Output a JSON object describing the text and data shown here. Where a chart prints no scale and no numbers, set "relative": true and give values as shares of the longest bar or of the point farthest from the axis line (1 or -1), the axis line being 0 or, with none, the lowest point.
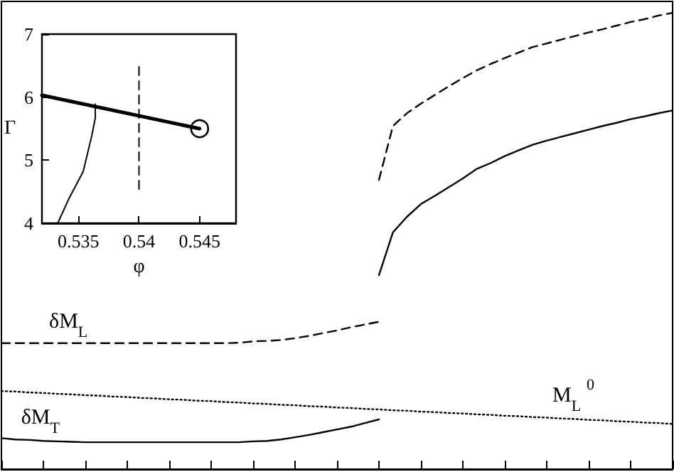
{
  "chart_data": [
    {
      "type": "line",
      "relative": true,
      "tick_labels": false,
      "marker": "none",
      "grid": false,
      "legend": false,
      "categories": [
        null,
        null,
        null,
        null,
        null,
        null,
        null,
        null,
        null,
        null,
        null,
        null,
        null,
        null,
        null,
        null,
        null,
        null,
        null,
        null,
        null,
        null,
        null,
        null,
        null,
        null,
        null,
        null,
        null,
        null,
        null,
        null,
        null,
        null,
        null,
        null,
        null,
        null,
        null,
        null,
        null,
        null,
        null,
        null,
        null,
        null,
        null,
        null,
        null
      ],
      "series": [
        {
          "name": "δM$_{L}$",
          "color": "#000000",
          "line_style": "dashed",
          "values": [
            0.276,
            0.276,
            0.276,
            0.276,
            0.276,
            0.276,
            0.276,
            0.276,
            0.276,
            0.276,
            0.276,
            0.276,
            0.276,
            0.276,
            0.276,
            0.276,
            0.276,
            0.277,
            0.28,
            0.281,
            0.283,
            0.287,
            0.292,
            0.298,
            0.304,
            0.311,
            0.317,
            0.323,
            null,
            null,
            null,
            null,
            null,
            null,
            null,
            null,
            null,
            null,
            null,
            null,
            null,
            null,
            null,
            null,
            null,
            null,
            null,
            null,
            null
          ]
        },
        {
          "color": "#000000",
          "line_style": "dashed",
          "values": [
            null,
            null,
            null,
            null,
            null,
            null,
            null,
            null,
            null,
            null,
            null,
            null,
            null,
            null,
            null,
            null,
            null,
            null,
            null,
            null,
            null,
            null,
            null,
            null,
            null,
            null,
            null,
            0.634,
            0.752,
            0.78,
            0.801,
            0.82,
            0.839,
            0.857,
            0.874,
            0.888,
            0.901,
            0.913,
            0.925,
            0.933,
            0.941,
            0.949,
            0.957,
            0.964,
            0.972,
            0.98,
            0.986,
            0.994,
            1
          ]
        },
        {
          "name": "δM$_{T}$",
          "color": "#000000",
          "line_style": "solid",
          "values": [
            0.068,
            0.065,
            0.064,
            0.062,
            0.061,
            0.06,
            0.059,
            0.059,
            0.059,
            0.059,
            0.059,
            0.059,
            0.059,
            0.059,
            0.059,
            0.059,
            0.059,
            0.059,
            0.061,
            0.062,
            0.065,
            0.07,
            0.075,
            0.081,
            0.087,
            0.093,
            0.101,
            0.109,
            null,
            null,
            null,
            null,
            null,
            null,
            null,
            null,
            null,
            null,
            null,
            null,
            null,
            null,
            null,
            null,
            null,
            null,
            null,
            null,
            null
          ]
        },
        {
          "color": "#000000",
          "line_style": "solid",
          "values": [
            null,
            null,
            null,
            null,
            null,
            null,
            null,
            null,
            null,
            null,
            null,
            null,
            null,
            null,
            null,
            null,
            null,
            null,
            null,
            null,
            null,
            null,
            null,
            null,
            null,
            null,
            null,
            0.425,
            0.519,
            0.553,
            0.581,
            0.599,
            0.618,
            0.637,
            0.658,
            0.671,
            0.686,
            0.699,
            0.711,
            0.72,
            0.728,
            0.736,
            0.744,
            0.752,
            0.759,
            0.767,
            0.773,
            0.78,
            0.786
          ]
        },
        {
          "name": "M$_{L}$$^{0}$",
          "color": "#000000",
          "line_style": "dotted",
          "values": [
            0.171,
            0.17,
            0.168,
            0.167,
            0.165,
            0.164,
            0.162,
            0.161,
            0.159,
            0.158,
            0.156,
            0.155,
            0.153,
            0.152,
            0.15,
            0.149,
            0.147,
            0.146,
            0.144,
            0.143,
            0.141,
            0.14,
            0.138,
            0.137,
            0.135,
            0.134,
            0.132,
            0.131,
            0.129,
            0.128,
            0.126,
            0.125,
            0.123,
            0.122,
            0.12,
            0.119,
            0.117,
            0.116,
            0.114,
            0.113,
            0.111,
            0.11,
            0.108,
            0.107,
            0.105,
            0.104,
            0.102,
            0.101,
            0.099
          ]
        }
      ]
    },
    {
      "type": "line",
      "xlabel": "φ",
      "ylabel": "Γ",
      "xlim": [
        0.532,
        0.548
      ],
      "xticks": [
        0.535,
        0.54,
        0.545
      ],
      "ylim": [
        4,
        7
      ],
      "yticks": [
        4,
        5,
        6,
        7
      ],
      "marker": "none",
      "grid": false,
      "legend": false,
      "series": [
        {
          "color": "#000000",
          "line_style": "solid",
          "x": [
            0.532,
            0.545
          ],
          "values": [
            6.03,
            5.5
          ]
        },
        {
          "color": "#000000",
          "line_style": "solid",
          "x": [
            0.5333,
            0.5342,
            0.5354,
            0.5361,
            0.5364,
            0.5364
          ],
          "values": [
            4.0,
            4.38,
            4.82,
            5.38,
            5.67,
            5.89
          ]
        },
        {
          "color": "#000000",
          "line_style": "dashed",
          "x": [
            0.54,
            0.54
          ],
          "values": [
            6.48,
            4.53
          ]
        },
        {
          "type": "scatter",
          "color": "#000000",
          "marker": "circle",
          "x": [
            0.545
          ],
          "values": [
            5.5
          ]
        }
      ]
    }
  ]
}
